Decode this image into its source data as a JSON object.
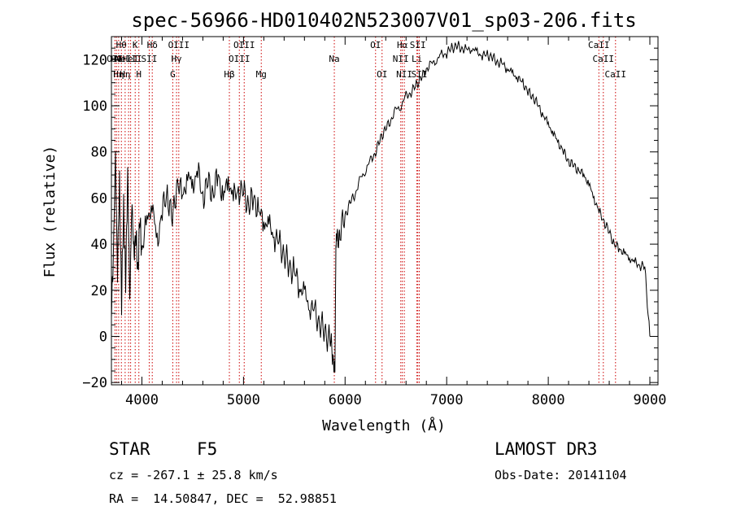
{
  "chart_data": {
    "type": "line",
    "title": "spec-56966-HD010402N523007V01_sp03-206.fits",
    "xlabel": "Wavelength (Å)",
    "ylabel": "Flux (relative)",
    "xlim": [
      3700,
      9080
    ],
    "ylim": [
      -21,
      130
    ],
    "xticks": [
      4000,
      5000,
      6000,
      7000,
      8000,
      9000
    ],
    "yticks": [
      -20,
      0,
      20,
      40,
      60,
      80,
      100,
      120
    ],
    "grid": false,
    "line_color": "#000000",
    "marker_color": "#cc0000",
    "series": [
      {
        "x": [
          3700,
          3720,
          3740,
          3760,
          3780,
          3800,
          3820,
          3840,
          3860,
          3880,
          3900,
          3920,
          3940,
          3960,
          3980,
          4000,
          4050,
          4100,
          4150,
          4200,
          4250,
          4300,
          4350,
          4400,
          4450,
          4500,
          4550,
          4600,
          4650,
          4700,
          4750,
          4800,
          4850,
          4900,
          4950,
          5000,
          5050,
          5100,
          5150,
          5200,
          5250,
          5300,
          5350,
          5400,
          5450,
          5500,
          5550,
          5600,
          5650,
          5700,
          5750,
          5800,
          5850,
          5880,
          5900,
          5910,
          5920,
          5950,
          6000,
          6050,
          6100,
          6150,
          6200,
          6250,
          6300,
          6350,
          6400,
          6450,
          6500,
          6550,
          6600,
          6650,
          6700,
          6750,
          6800,
          6850,
          6900,
          6950,
          7000,
          7050,
          7100,
          7150,
          7200,
          7250,
          7300,
          7350,
          7400,
          7450,
          7500,
          7550,
          7600,
          7650,
          7700,
          7750,
          7800,
          7850,
          7900,
          7950,
          8000,
          8050,
          8100,
          8150,
          8200,
          8250,
          8300,
          8350,
          8400,
          8450,
          8500,
          8550,
          8600,
          8650,
          8700,
          8750,
          8800,
          8850,
          8900,
          8950,
          9000
        ],
        "y": [
          8,
          40,
          75,
          30,
          65,
          15,
          58,
          20,
          75,
          12,
          60,
          35,
          45,
          28,
          50,
          38,
          50,
          58,
          40,
          55,
          62,
          50,
          68,
          60,
          70,
          65,
          72,
          60,
          67,
          62,
          70,
          60,
          68,
          60,
          64,
          62,
          57,
          60,
          54,
          50,
          48,
          44,
          40,
          36,
          30,
          28,
          22,
          18,
          14,
          10,
          6,
          2,
          -2,
          -6,
          -19,
          44,
          40,
          46,
          52,
          58,
          62,
          68,
          72,
          76,
          80,
          86,
          90,
          94,
          98,
          100,
          104,
          106,
          109,
          112,
          116,
          118,
          120,
          122,
          123,
          125,
          126,
          125,
          124,
          125,
          123,
          122,
          122,
          121,
          119,
          118,
          116,
          114,
          112,
          110,
          106,
          104,
          100,
          96,
          92,
          88,
          84,
          80,
          76,
          74,
          72,
          70,
          66,
          60,
          54,
          50,
          45,
          40,
          38,
          36,
          34,
          32,
          31,
          30,
          0
        ]
      }
    ],
    "line_markers": [
      {
        "x": 3734,
        "row": 1,
        "label": "OII"
      },
      {
        "x": 3750,
        "row": 1,
        "label": "Hθ"
      },
      {
        "x": 3771,
        "row": 2,
        "label": "Hη"
      },
      {
        "x": 3798,
        "row": 0,
        "label": "Hθ"
      },
      {
        "x": 3835,
        "row": 2,
        "label": "Hη"
      },
      {
        "x": 3869,
        "row": 1,
        "label": "NeIII"
      },
      {
        "x": 3889,
        "row": 1,
        "label": "HeI"
      },
      {
        "x": 3934,
        "row": 0,
        "label": "K"
      },
      {
        "x": 3970,
        "row": 2,
        "label": "H"
      },
      {
        "x": 4072,
        "row": 1,
        "label": "SII"
      },
      {
        "x": 4102,
        "row": 0,
        "label": "Hδ"
      },
      {
        "x": 4304,
        "row": 2,
        "label": "G"
      },
      {
        "x": 4341,
        "row": 1,
        "label": "Hγ"
      },
      {
        "x": 4363,
        "row": 0,
        "label": "OIII"
      },
      {
        "x": 4861,
        "row": 2,
        "label": "Hβ"
      },
      {
        "x": 4959,
        "row": 1,
        "label": "OIII"
      },
      {
        "x": 5007,
        "row": 0,
        "label": "OIII"
      },
      {
        "x": 5175,
        "row": 2,
        "label": "Mg"
      },
      {
        "x": 5894,
        "row": 1,
        "label": "Na"
      },
      {
        "x": 6300,
        "row": 0,
        "label": "OI"
      },
      {
        "x": 6364,
        "row": 2,
        "label": "OI"
      },
      {
        "x": 6548,
        "row": 1,
        "label": "NII"
      },
      {
        "x": 6563,
        "row": 0,
        "label": "Hα"
      },
      {
        "x": 6583,
        "row": 2,
        "label": "NII"
      },
      {
        "x": 6707,
        "row": 1,
        "label": "Li"
      },
      {
        "x": 6716,
        "row": 0,
        "label": "SII"
      },
      {
        "x": 6731,
        "row": 2,
        "label": "SII"
      },
      {
        "x": 8498,
        "row": 0,
        "label": "CaII"
      },
      {
        "x": 8542,
        "row": 1,
        "label": "CaII"
      },
      {
        "x": 8662,
        "row": 2,
        "label": "CaII"
      }
    ]
  },
  "info": {
    "object_class": "STAR",
    "subclass": "F5",
    "survey": "LAMOST DR3",
    "cz": "cz = -267.1 ± 25.8 km/s",
    "obs_date": "Obs-Date: 20141104",
    "radec": "RA =  14.50847, DEC =  52.98851"
  }
}
